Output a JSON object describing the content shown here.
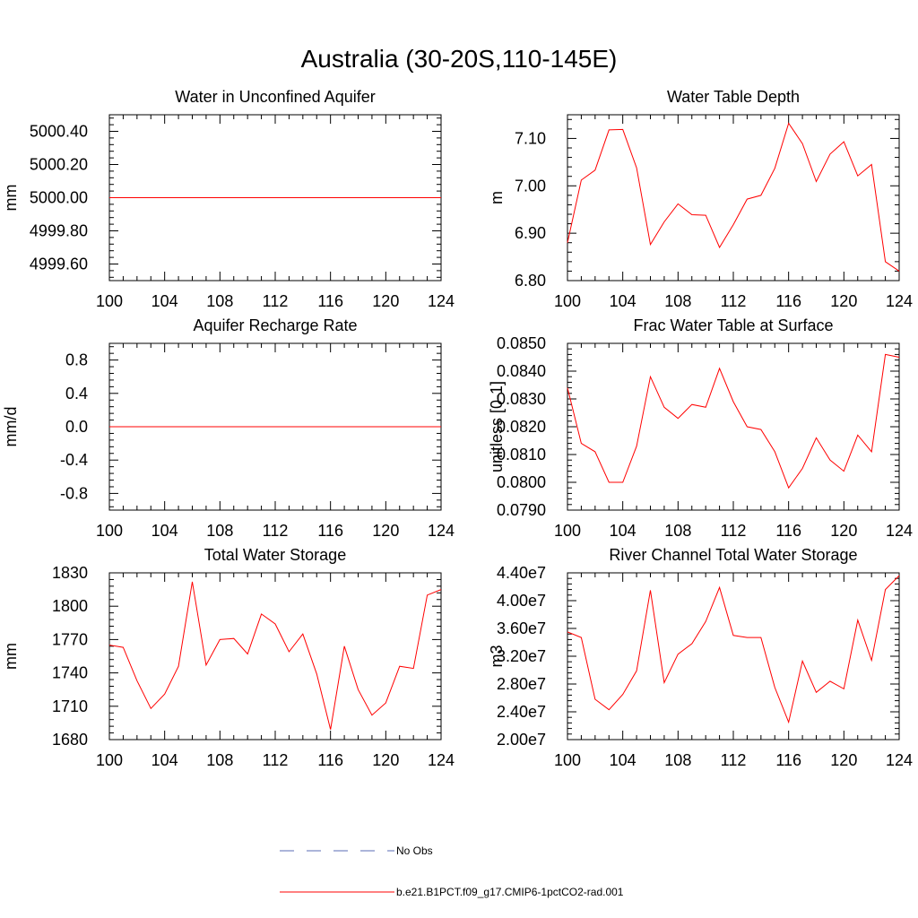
{
  "figure": {
    "title": "Australia (30-20S,110-145E)"
  },
  "legend": {
    "items": [
      {
        "label": "No Obs",
        "color": "#5a6bb4",
        "dash": true
      },
      {
        "label": "b.e21.B1PCT.f09_g17.CMIP6-1pctCO2-rad.001",
        "color": "#ff0000",
        "dash": false
      }
    ]
  },
  "chart_data": [
    {
      "type": "line",
      "title": "Water in Unconfined Aquifer",
      "ylabel": "mm",
      "xlim": [
        100,
        124
      ],
      "ylim": [
        4999.5,
        5000.5
      ],
      "xticks": [
        100,
        104,
        108,
        112,
        116,
        120,
        124
      ],
      "yticks": [
        4999.6,
        4999.8,
        5000.0,
        5000.2,
        5000.4
      ],
      "ytick_labels": [
        "4999.60",
        "4999.80",
        "5000.00",
        "5000.20",
        "5000.40"
      ],
      "series": [
        {
          "color": "#ff0000",
          "x": [
            100,
            101,
            102,
            103,
            104,
            105,
            106,
            107,
            108,
            109,
            110,
            111,
            112,
            113,
            114,
            115,
            116,
            117,
            118,
            119,
            120,
            121,
            122,
            123,
            124
          ],
          "y": [
            5000,
            5000,
            5000,
            5000,
            5000,
            5000,
            5000,
            5000,
            5000,
            5000,
            5000,
            5000,
            5000,
            5000,
            5000,
            5000,
            5000,
            5000,
            5000,
            5000,
            5000,
            5000,
            5000,
            5000,
            5000
          ]
        }
      ]
    },
    {
      "type": "line",
      "title": "Water Table Depth",
      "ylabel": "m",
      "xlim": [
        100,
        124
      ],
      "ylim": [
        6.8,
        7.15
      ],
      "xticks": [
        100,
        104,
        108,
        112,
        116,
        120,
        124
      ],
      "yticks": [
        6.8,
        6.9,
        7.0,
        7.1
      ],
      "ytick_labels": [
        "6.80",
        "6.90",
        "7.00",
        "7.10"
      ],
      "series": [
        {
          "color": "#ff0000",
          "x": [
            100,
            101,
            102,
            103,
            104,
            105,
            106,
            107,
            108,
            109,
            110,
            111,
            112,
            113,
            114,
            115,
            116,
            117,
            118,
            119,
            120,
            121,
            122,
            123,
            124
          ],
          "y": [
            6.88,
            7.012,
            7.033,
            7.118,
            7.119,
            7.038,
            6.876,
            6.924,
            6.962,
            6.939,
            6.938,
            6.87,
            6.918,
            6.972,
            6.98,
            7.037,
            7.132,
            7.089,
            7.009,
            7.067,
            7.093,
            7.021,
            7.045,
            6.84,
            6.82
          ]
        }
      ]
    },
    {
      "type": "line",
      "title": "Aquifer Recharge Rate",
      "ylabel": "mm/d",
      "xlim": [
        100,
        124
      ],
      "ylim": [
        -1.0,
        1.0
      ],
      "xticks": [
        100,
        104,
        108,
        112,
        116,
        120,
        124
      ],
      "yticks": [
        -0.8,
        -0.4,
        0.0,
        0.4,
        0.8
      ],
      "ytick_labels": [
        "-0.8",
        "-0.4",
        "0.0",
        "0.4",
        "0.8"
      ],
      "series": [
        {
          "color": "#ff0000",
          "x": [
            100,
            101,
            102,
            103,
            104,
            105,
            106,
            107,
            108,
            109,
            110,
            111,
            112,
            113,
            114,
            115,
            116,
            117,
            118,
            119,
            120,
            121,
            122,
            123,
            124
          ],
          "y": [
            0,
            0,
            0,
            0,
            0,
            0,
            0,
            0,
            0,
            0,
            0,
            0,
            0,
            0,
            0,
            0,
            0,
            0,
            0,
            0,
            0,
            0,
            0,
            0,
            0
          ]
        }
      ]
    },
    {
      "type": "line",
      "title": "Frac Water Table at Surface",
      "ylabel": "unitless [0-1]",
      "xlim": [
        100,
        124
      ],
      "ylim": [
        0.079,
        0.085
      ],
      "xticks": [
        100,
        104,
        108,
        112,
        116,
        120,
        124
      ],
      "yticks": [
        0.079,
        0.08,
        0.081,
        0.082,
        0.083,
        0.084,
        0.085
      ],
      "ytick_labels": [
        "0.0790",
        "0.0800",
        "0.0810",
        "0.0820",
        "0.0830",
        "0.0840",
        "0.0850"
      ],
      "series": [
        {
          "color": "#ff0000",
          "x": [
            100,
            101,
            102,
            103,
            104,
            105,
            106,
            107,
            108,
            109,
            110,
            111,
            112,
            113,
            114,
            115,
            116,
            117,
            118,
            119,
            120,
            121,
            122,
            123,
            124
          ],
          "y": [
            0.0834,
            0.0814,
            0.0811,
            0.08,
            0.08,
            0.0813,
            0.0838,
            0.0827,
            0.0823,
            0.0828,
            0.0827,
            0.0841,
            0.0829,
            0.082,
            0.0819,
            0.0811,
            0.0798,
            0.0805,
            0.0816,
            0.0808,
            0.0804,
            0.0817,
            0.0811,
            0.0846,
            0.0845
          ]
        }
      ]
    },
    {
      "type": "line",
      "title": "Total Water Storage",
      "ylabel": "mm",
      "xlim": [
        100,
        124
      ],
      "ylim": [
        1680,
        1830
      ],
      "xticks": [
        100,
        104,
        108,
        112,
        116,
        120,
        124
      ],
      "yticks": [
        1680,
        1710,
        1740,
        1770,
        1800,
        1830
      ],
      "ytick_labels": [
        "1680",
        "1710",
        "1740",
        "1770",
        "1800",
        "1830"
      ],
      "series": [
        {
          "color": "#ff0000",
          "x": [
            100,
            101,
            102,
            103,
            104,
            105,
            106,
            107,
            108,
            109,
            110,
            111,
            112,
            113,
            114,
            115,
            116,
            117,
            118,
            119,
            120,
            121,
            122,
            123,
            124
          ],
          "y": [
            1765,
            1763,
            1733,
            1708,
            1721,
            1746,
            1822,
            1747,
            1770,
            1771,
            1757,
            1793,
            1784,
            1759,
            1775,
            1739,
            1689,
            1764,
            1725,
            1702,
            1713,
            1746,
            1744,
            1810,
            1815
          ]
        }
      ]
    },
    {
      "type": "line",
      "title": "River Channel Total Water Storage",
      "ylabel": "m3",
      "xlim": [
        100,
        124
      ],
      "ylim": [
        20000000,
        44000000
      ],
      "xticks": [
        100,
        104,
        108,
        112,
        116,
        120,
        124
      ],
      "yticks": [
        20000000,
        24000000,
        28000000,
        32000000,
        36000000,
        40000000,
        44000000
      ],
      "ytick_labels": [
        "2.00e7",
        "2.40e7",
        "2.80e7",
        "3.20e7",
        "3.60e7",
        "4.00e7",
        "4.40e7"
      ],
      "series": [
        {
          "color": "#ff0000",
          "x": [
            100,
            101,
            102,
            103,
            104,
            105,
            106,
            107,
            108,
            109,
            110,
            111,
            112,
            113,
            114,
            115,
            116,
            117,
            118,
            119,
            120,
            121,
            122,
            123,
            124
          ],
          "y": [
            35500000,
            34700000,
            25800000,
            24300000,
            26500000,
            29900000,
            41500000,
            28200000,
            32300000,
            33800000,
            37000000,
            41900000,
            35000000,
            34700000,
            34700000,
            27500000,
            22500000,
            31300000,
            26800000,
            28400000,
            27300000,
            37200000,
            31400000,
            41600000,
            43600000
          ]
        }
      ]
    }
  ]
}
